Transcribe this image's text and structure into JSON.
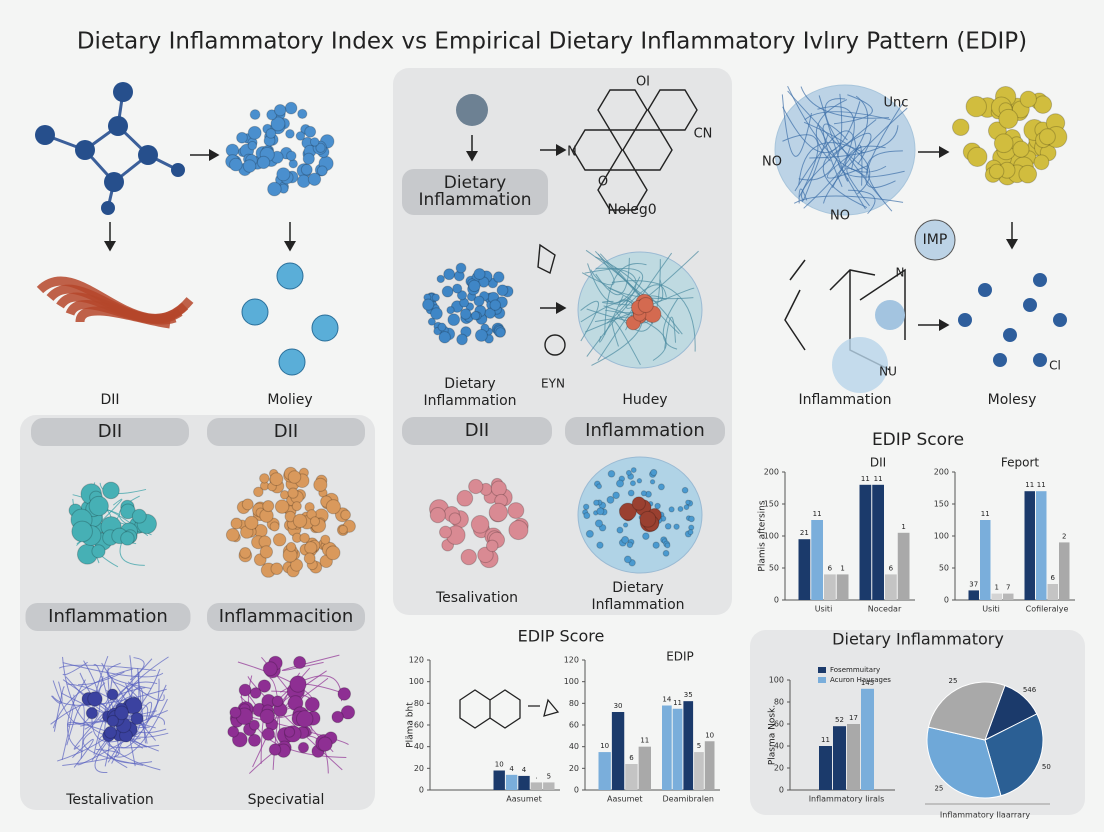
{
  "title": "Dietary Inflammatory Index   vs   Empirical Dietary Inflammatory Ivlıry Pattern (EDIP)",
  "labels": [
    "DII",
    "Moliey",
    "DII",
    "DII",
    "Inflammation",
    "Inflammacition",
    "Testalivation",
    "Specivatial",
    "Noleg0",
    "OI",
    "CN",
    "N",
    "O",
    "EYN",
    "Hudey",
    "DII",
    "Inflammation",
    "Tesalivation",
    "Unc",
    "NO",
    "NO",
    "IMP",
    "Inflammation",
    "Molesy",
    "NU",
    "N",
    "Cl",
    "EDIP Score"
  ],
  "multiline_labels": [
    [
      "Dietary",
      "Inflammation"
    ],
    [
      "Dietary",
      "Inflammation"
    ],
    [
      "Dietary",
      "Inflammation"
    ]
  ],
  "charts": [
    {
      "type": "bar",
      "title": "DII",
      "ylabel": "Plamis aftersins",
      "ylim": [
        0,
        200
      ],
      "yticks": [
        0,
        50,
        100,
        150,
        200
      ],
      "groups": [
        {
          "category": "Usiti",
          "values": [
            95,
            125,
            40,
            40
          ],
          "colors": [
            "#1b3a6b",
            "#7aaedb",
            "#c4c4c4",
            "#a9a9a9"
          ],
          "labels": [
            "21",
            "11",
            "6",
            "1"
          ]
        },
        {
          "category": "Nocedar",
          "values": [
            180,
            180,
            40,
            105
          ],
          "colors": [
            "#1b3a6b",
            "#1b3a6b",
            "#c4c4c4",
            "#a9a9a9"
          ],
          "labels": [
            "11",
            "11",
            "6",
            "1"
          ]
        }
      ]
    },
    {
      "type": "bar",
      "title": "Feport",
      "ylim": [
        0,
        200
      ],
      "yticks": [
        0,
        50,
        100,
        150,
        200
      ],
      "groups": [
        {
          "category": "Usiti",
          "values": [
            15,
            125,
            10,
            10
          ],
          "colors": [
            "#1b3a6b",
            "#7aaedb",
            "#d4d4d4",
            "#b8b8b8"
          ],
          "labels": [
            "37",
            "11",
            "1",
            "7"
          ]
        },
        {
          "category": "Cofileralye",
          "values": [
            170,
            170,
            25,
            90
          ],
          "colors": [
            "#1b3a6b",
            "#7aaedb",
            "#c4c4c4",
            "#a9a9a9"
          ],
          "labels": [
            "11",
            "11",
            "6",
            "2"
          ]
        }
      ]
    },
    {
      "type": "bar",
      "title": "EDIP Score",
      "ylabel": "Pläma bht",
      "ylim": [
        0,
        120
      ],
      "yticks": [
        0,
        20,
        40,
        60,
        80,
        100,
        120
      ],
      "groups": [
        {
          "category": "Aasumet",
          "values": [
            18,
            14,
            13,
            7,
            7
          ],
          "colors": [
            "#1b3a6b",
            "#7aaedb",
            "#1b3a6b",
            "#b8b8b8",
            "#b8b8b8"
          ],
          "labels": [
            "10",
            "4",
            "4",
            ".",
            "5"
          ]
        }
      ]
    },
    {
      "type": "bar",
      "title": "EDIP",
      "ylim": [
        0,
        120
      ],
      "yticks": [
        0,
        20,
        40,
        60,
        80,
        100,
        120
      ],
      "groups": [
        {
          "category": "Aasumet",
          "values": [
            35,
            72,
            24,
            40
          ],
          "colors": [
            "#7aaedb",
            "#1b3a6b",
            "#c4c4c4",
            "#a9a9a9"
          ],
          "labels": [
            "10",
            "30",
            "6",
            "11"
          ]
        },
        {
          "category": "Deamibralen",
          "values": [
            78,
            75,
            82,
            35,
            45
          ],
          "colors": [
            "#7aaedb",
            "#7aaedb",
            "#1b3a6b",
            "#c4c4c4",
            "#a9a9a9"
          ],
          "labels": [
            "14",
            "11",
            "35",
            "5",
            "10"
          ]
        }
      ]
    },
    {
      "type": "bar",
      "title": "Dietary Inflammatory",
      "ylabel": "Plasma Nosk.",
      "ylim": [
        0,
        100
      ],
      "yticks": [
        0,
        20,
        40,
        60,
        80,
        100
      ],
      "legend": [
        {
          "name": "Fosemmuitary",
          "color": "#1b3a6b"
        },
        {
          "name": "Acuron Hausages",
          "color": "#7aaedb"
        }
      ],
      "groups": [
        {
          "category": "Inflammatory Iirals",
          "values": [
            40,
            58,
            60,
            92
          ],
          "colors": [
            "#1b3a6b",
            "#1b3a6b",
            "#a9a9a9",
            "#7aaedb"
          ],
          "labels": [
            "11",
            "52",
            "17",
            "145"
          ]
        }
      ]
    },
    {
      "type": "pie",
      "category": "Inflammatory Ilaarrary",
      "values": [
        12,
        28,
        33,
        27
      ],
      "colors": [
        "#1b3a6b",
        "#2b5f94",
        "#6fa8d8",
        "#a9a9a9"
      ],
      "labels": [
        "546",
        "50",
        "25",
        "25"
      ]
    }
  ]
}
